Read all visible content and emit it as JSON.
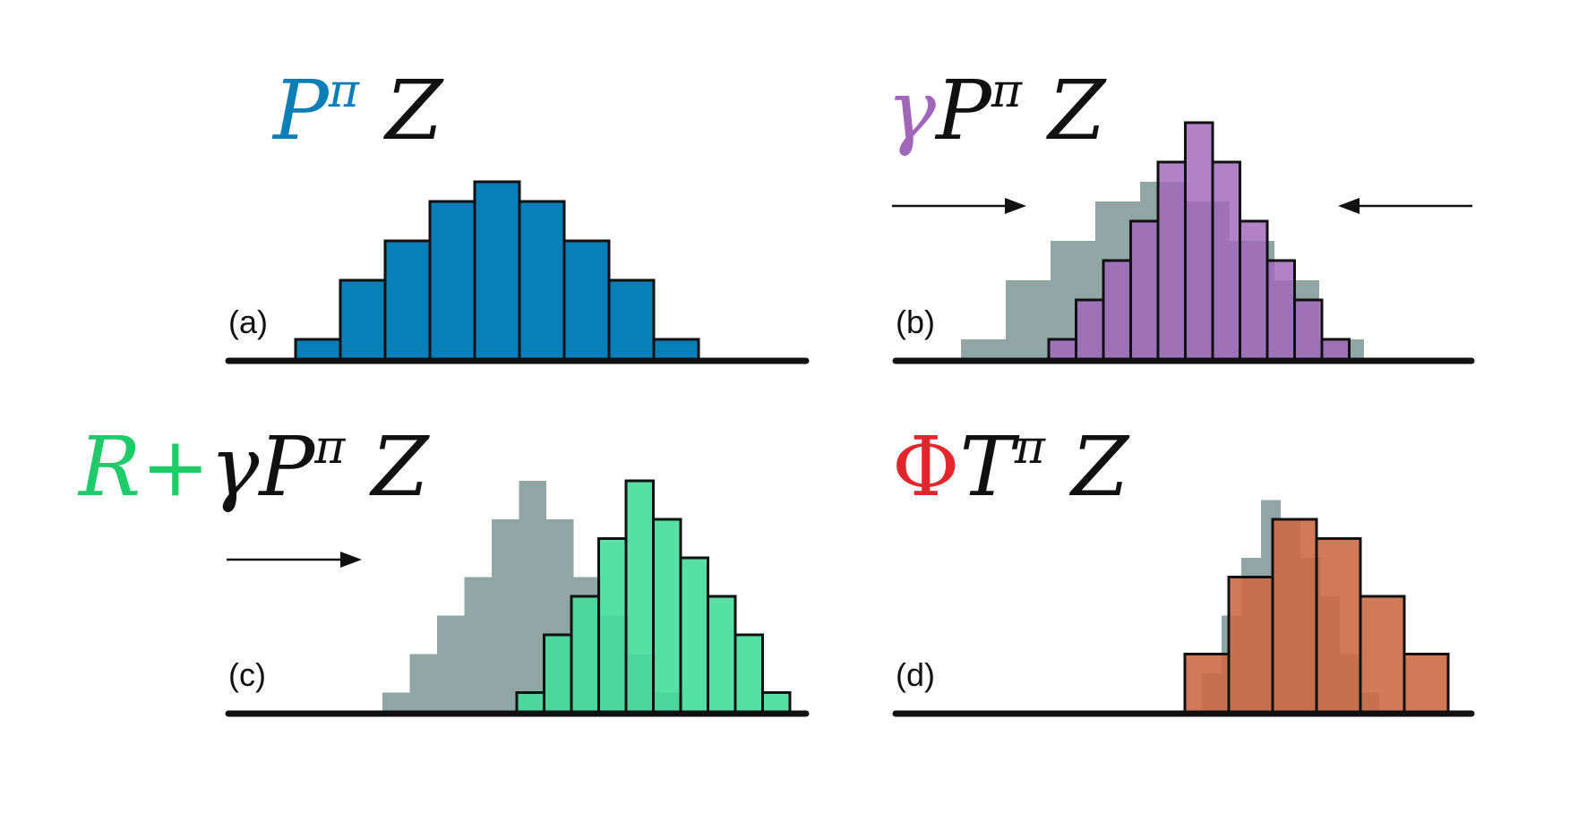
{
  "colors": {
    "blue": "#0a7fb7",
    "purple": "#a067b9",
    "purple_over": "#9560ad",
    "green": "#45dc9a",
    "green_over": "#27c580",
    "green_title": "#1ecb68",
    "orange": "#cc6b45",
    "orange_light": "#e9835c",
    "gray": "#8fa6a4",
    "red": "#e2262c",
    "black": "#111111"
  },
  "panels": [
    {
      "id": "a",
      "label": "(a)",
      "formula": [
        {
          "text": "P",
          "color": "blue"
        },
        {
          "text": "π",
          "color": "blue",
          "sup": true
        },
        {
          "text": " Z",
          "color": "black"
        }
      ],
      "ghost_heights": [],
      "bar_heights": [
        1,
        4,
        6,
        8,
        9,
        8,
        6,
        4,
        1
      ],
      "bar_color": "blue",
      "arrows": []
    },
    {
      "id": "b",
      "label": "(b)",
      "formula": [
        {
          "text": "γ",
          "color": "purple"
        },
        {
          "text": "P",
          "color": "black"
        },
        {
          "text": "π",
          "color": "black",
          "sup": true
        },
        {
          "text": " Z",
          "color": "black"
        }
      ],
      "ghost_heights": [
        1,
        4,
        6,
        8,
        9,
        8,
        6,
        4,
        1
      ],
      "bar_heights": [
        1,
        3,
        5,
        7,
        10,
        12,
        10,
        7,
        5,
        3,
        1
      ],
      "bar_color": "purple",
      "arrows": [
        "right",
        "left"
      ]
    },
    {
      "id": "c",
      "label": "(c)",
      "formula": [
        {
          "text": "R+",
          "color": "green_title"
        },
        {
          "text": "γ",
          "color": "black"
        },
        {
          "text": "P",
          "color": "black"
        },
        {
          "text": "π",
          "color": "black",
          "sup": true
        },
        {
          "text": " Z",
          "color": "black"
        }
      ],
      "ghost_heights": [
        1,
        3,
        5,
        7,
        10,
        12,
        10,
        7,
        5,
        3,
        1
      ],
      "bar_heights": [
        1,
        4,
        6,
        9,
        12,
        10,
        8,
        6,
        4,
        1
      ],
      "bar_color": "green",
      "arrows": [
        "right"
      ]
    },
    {
      "id": "d",
      "label": "(d)",
      "formula": [
        {
          "text": "Φ",
          "color": "red",
          "upright": true
        },
        {
          "text": "T",
          "color": "black",
          "script": true
        },
        {
          "text": "π",
          "color": "black",
          "sup": true
        },
        {
          "text": " Z",
          "color": "black"
        }
      ],
      "ghost_heights": [
        0,
        2,
        5,
        8,
        11,
        10,
        8,
        6,
        3,
        1
      ],
      "bar_heights": [
        3,
        7,
        10,
        9,
        6,
        3
      ],
      "bar_color": "orange",
      "arrows": []
    }
  ]
}
